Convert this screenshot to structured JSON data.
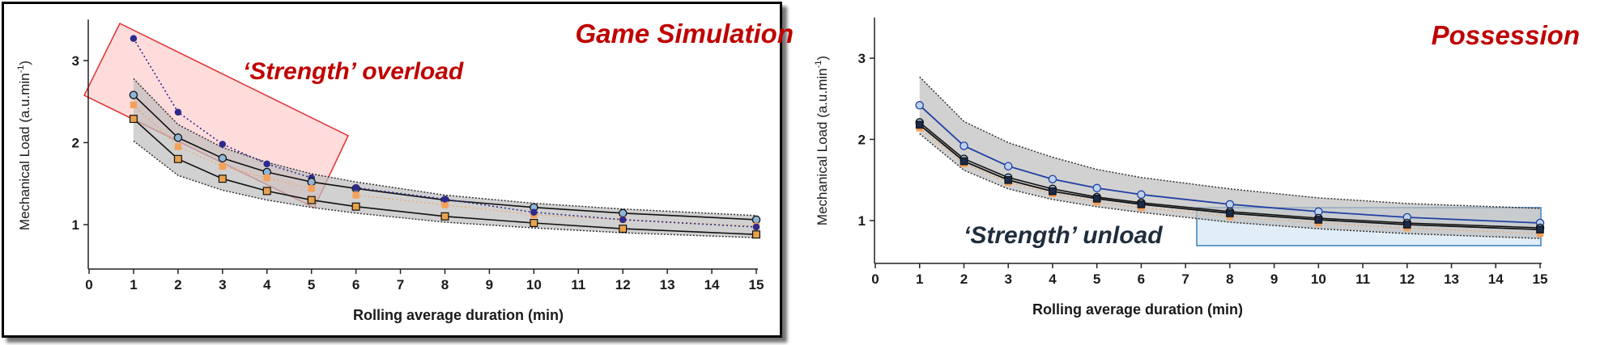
{
  "chart_data": [
    {
      "type": "line",
      "title": "Game Simulation",
      "xlabel": "Rolling average duration (min)",
      "ylabel": "Mechanical Load (a.u.min",
      "ylabel_sup": "-1",
      "ylabel_close": ")",
      "xlim": [
        0,
        15
      ],
      "ylim": [
        0.5,
        3.5
      ],
      "xticks": [
        0,
        1,
        2,
        3,
        4,
        5,
        6,
        7,
        8,
        9,
        10,
        11,
        12,
        13,
        14,
        15
      ],
      "yticks": [
        1,
        2,
        3
      ],
      "band": {
        "x": [
          1,
          2,
          3,
          4,
          5,
          6,
          8,
          10,
          12,
          15
        ],
        "upper": [
          2.78,
          2.22,
          1.94,
          1.76,
          1.62,
          1.52,
          1.36,
          1.26,
          1.19,
          1.11
        ],
        "lower": [
          2.02,
          1.6,
          1.42,
          1.3,
          1.21,
          1.14,
          1.03,
          0.96,
          0.9,
          0.84
        ]
      },
      "series": [
        {
          "style": "navy-dotted",
          "x": [
            1,
            2,
            3,
            4,
            5
          ],
          "values": [
            3.27,
            2.37,
            1.98,
            1.74,
            1.57
          ]
        },
        {
          "style": "mean-circle",
          "x": [
            1,
            2,
            3,
            4,
            5,
            6,
            8,
            10,
            12,
            15
          ],
          "values": [
            2.58,
            2.06,
            1.81,
            1.64,
            1.52,
            1.44,
            1.3,
            1.21,
            1.14,
            1.06
          ]
        },
        {
          "style": "orange",
          "x": [
            1,
            2,
            3,
            4,
            5
          ],
          "values": [
            2.46,
            1.95,
            1.71,
            1.57,
            1.44
          ]
        },
        {
          "style": "mean-square",
          "x": [
            1,
            2,
            3,
            4,
            5,
            6,
            8,
            10,
            12,
            15
          ],
          "values": [
            2.29,
            1.8,
            1.56,
            1.41,
            1.3,
            1.22,
            1.1,
            1.02,
            0.95,
            0.88
          ]
        },
        {
          "style": "orange",
          "x": [
            6,
            8,
            10,
            12,
            15
          ],
          "values": [
            1.36,
            1.24,
            1.12,
            1.06,
            0.98
          ]
        },
        {
          "style": "navy-dotted",
          "x": [
            6,
            8,
            10,
            12,
            15
          ],
          "values": [
            1.45,
            1.31,
            1.15,
            1.06,
            0.97
          ]
        }
      ],
      "annotation": {
        "text": "‘Strength’ overload",
        "color": "#c00000"
      }
    },
    {
      "type": "line",
      "title": "Possession",
      "xlabel": "Rolling average duration (min)",
      "ylabel": "Mechanical Load (a.u.min",
      "ylabel_sup": "-1",
      "ylabel_close": ")",
      "xlim": [
        0,
        15
      ],
      "ylim": [
        0.5,
        3.5
      ],
      "xticks": [
        0,
        1,
        2,
        3,
        4,
        5,
        6,
        7,
        8,
        9,
        10,
        11,
        12,
        13,
        14,
        15
      ],
      "yticks": [
        1,
        2,
        3
      ],
      "band": {
        "x": [
          1,
          2,
          3,
          4,
          5,
          6,
          8,
          10,
          12,
          15
        ],
        "upper": [
          2.77,
          2.22,
          1.96,
          1.78,
          1.63,
          1.53,
          1.39,
          1.28,
          1.21,
          1.15
        ],
        "lower": [
          2.07,
          1.62,
          1.39,
          1.26,
          1.17,
          1.1,
          0.98,
          0.9,
          0.84,
          0.78
        ]
      },
      "series": [
        {
          "style": "blue-circle",
          "x": [
            1,
            2,
            3,
            4,
            5,
            6,
            8,
            10,
            12,
            15
          ],
          "values": [
            2.42,
            1.92,
            1.67,
            1.51,
            1.4,
            1.32,
            1.2,
            1.11,
            1.04,
            0.97
          ]
        },
        {
          "style": "mean-circle",
          "x": [
            1,
            2,
            3,
            4,
            5,
            6,
            8,
            10,
            12,
            15
          ],
          "values": [
            2.21,
            1.76,
            1.53,
            1.39,
            1.29,
            1.22,
            1.11,
            1.03,
            0.97,
            0.91
          ]
        },
        {
          "style": "orange",
          "x": [
            1,
            2,
            3,
            4,
            5,
            6,
            8,
            10,
            12,
            15
          ],
          "values": [
            2.14,
            1.7,
            1.47,
            1.33,
            1.23,
            1.16,
            1.05,
            0.97,
            0.91,
            0.84
          ]
        },
        {
          "style": "black-square",
          "x": [
            1,
            2,
            3,
            4,
            5,
            6,
            8,
            10,
            12,
            15
          ],
          "values": [
            2.18,
            1.73,
            1.5,
            1.36,
            1.27,
            1.2,
            1.09,
            1.01,
            0.95,
            0.89
          ]
        }
      ],
      "annotation": {
        "text": "‘Strength’ unload",
        "color": "#1f2d3d"
      }
    }
  ]
}
